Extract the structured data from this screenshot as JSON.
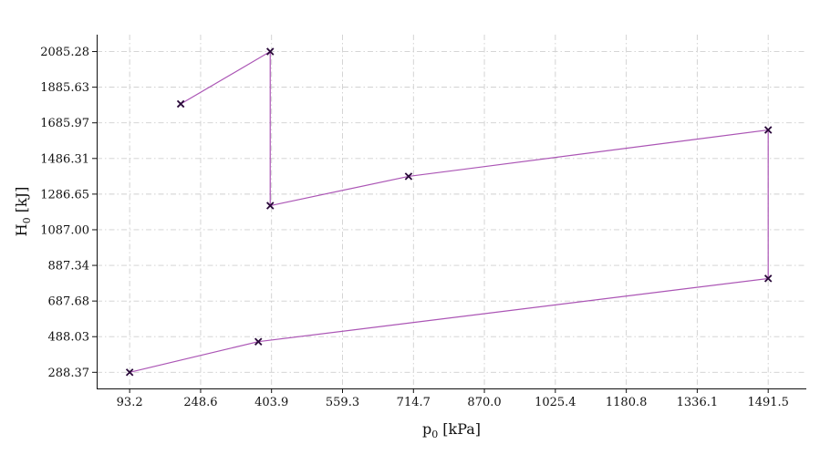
{
  "chart_data": {
    "type": "line",
    "title": "",
    "xlabel": "p₀ [kPa]",
    "ylabel": "H₀ [kJ]",
    "xlabel_main": "p",
    "xlabel_sub": "0",
    "xlabel_unit": " [kPa]",
    "ylabel_main": "H",
    "ylabel_sub": "0",
    "ylabel_unit": " [kJ]",
    "xlim": [
      21.0,
      1575.0
    ],
    "ylim": [
      198.0,
      2180.0
    ],
    "xticks": [
      93.2,
      248.6,
      403.9,
      559.3,
      714.7,
      870.0,
      1025.4,
      1180.8,
      1336.1,
      1491.5
    ],
    "xtick_labels": [
      "93.2",
      "248.6",
      "403.9",
      "559.3",
      "714.7",
      "870.0",
      "1025.4",
      "1180.8",
      "1336.1",
      "1491.5"
    ],
    "yticks": [
      288.37,
      488.03,
      687.68,
      887.34,
      1087.0,
      1286.65,
      1486.31,
      1685.97,
      1885.63,
      2085.28
    ],
    "ytick_labels": [
      "288.37",
      "488.03",
      "687.68",
      "887.34",
      "1087.00",
      "1286.65",
      "1486.31",
      "1685.97",
      "1885.63",
      "2085.28"
    ],
    "grid": true,
    "series": [
      {
        "color": "#ab55b5",
        "marker": "x",
        "marker_color": "#2a0a3a",
        "x": [
          205,
          401,
          401,
          704,
          1491.5,
          1491.5,
          375,
          93.2
        ],
        "y": [
          1792,
          2085.28,
          1222,
          1386,
          1646,
          814,
          460,
          288.37
        ]
      }
    ]
  }
}
